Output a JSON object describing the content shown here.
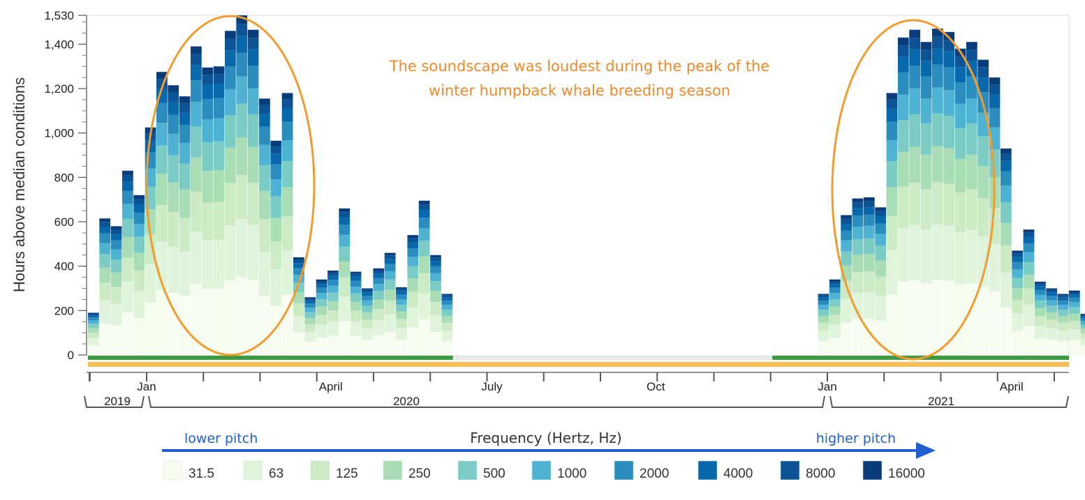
{
  "chart_data": {
    "type": "bar",
    "stacked": true,
    "title": "",
    "ylabel": "Hours above median conditions",
    "ylim": [
      0,
      1530
    ],
    "y_ticks": [
      0,
      200,
      400,
      600,
      800,
      "1,000",
      "1,200",
      "1,400",
      "1,530"
    ],
    "y_tick_values": [
      0,
      200,
      400,
      600,
      800,
      1000,
      1200,
      1400,
      1530
    ],
    "x_month_labels": [
      "Jan",
      "April",
      "July",
      "Oct",
      "Jan",
      "April"
    ],
    "year_labels": [
      "2019",
      "2020",
      "2021"
    ],
    "annotation": [
      "The soundscape was loudest during the peak of the",
      "winter humpback whale breeding season"
    ],
    "frequency_axis": {
      "title": "Frequency (Hertz, Hz)",
      "low": "lower pitch",
      "high": "higher pitch"
    },
    "legend": [
      "31.5",
      "63",
      "125",
      "250",
      "500",
      "1000",
      "2000",
      "4000",
      "8000",
      "16000"
    ],
    "colors": [
      "#f7fcf0",
      "#e0f3db",
      "#ccebc5",
      "#a8ddb5",
      "#7bccc4",
      "#4eb3d3",
      "#2b8cbe",
      "#0868ac",
      "#0b5394",
      "#083c7a"
    ],
    "band_fractions": [
      0.23,
      0.17,
      0.13,
      0.11,
      0.1,
      0.08,
      0.07,
      0.05,
      0.035,
      0.025
    ],
    "weeks_total": 86,
    "weeks": [
      190,
      615,
      580,
      830,
      720,
      1025,
      1275,
      1215,
      1165,
      1390,
      1295,
      1300,
      1460,
      1530,
      1465,
      1155,
      965,
      1180,
      440,
      260,
      340,
      380,
      660,
      375,
      300,
      390,
      460,
      305,
      540,
      695,
      450,
      275,
      null,
      null,
      null,
      null,
      null,
      null,
      null,
      null,
      null,
      null,
      null,
      null,
      null,
      null,
      null,
      null,
      null,
      null,
      null,
      null,
      null,
      null,
      null,
      null,
      null,
      null,
      null,
      null,
      null,
      null,
      null,
      null,
      275,
      340,
      630,
      705,
      710,
      665,
      1180,
      1430,
      1465,
      1410,
      1470,
      1455,
      1380,
      1410,
      1330,
      1250,
      930,
      470,
      565,
      330,
      300,
      275,
      290,
      185
    ],
    "recording_bars": {
      "green_segments_weeks": [
        [
          0,
          32
        ],
        [
          60,
          86
        ]
      ],
      "orange_segment_weeks": [
        0,
        86
      ]
    },
    "highlight_ellipses": [
      "Jan–April 2020 peak",
      "Jan–April 2021 peak"
    ]
  }
}
